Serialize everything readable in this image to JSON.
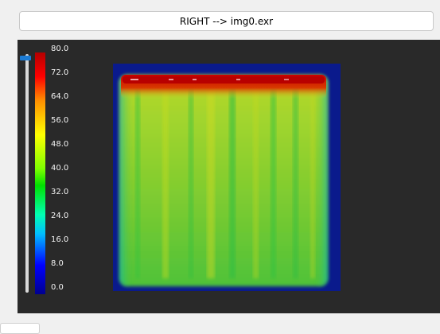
{
  "header": {
    "view_button_label": "RIGHT --> img0.exr"
  },
  "colorbar": {
    "ticks": [
      "80.0",
      "72.0",
      "64.0",
      "56.0",
      "48.0",
      "40.0",
      "32.0",
      "24.0",
      "16.0",
      "8.0",
      "0.0"
    ],
    "range": [
      0,
      80
    ],
    "colors": [
      "#00008f",
      "#0000ff",
      "#00bfff",
      "#00ffb0",
      "#00e000",
      "#7fff00",
      "#ffff00",
      "#ff9000",
      "#ff0000",
      "#b40000"
    ]
  },
  "slider": {
    "value_fraction": 0.98
  },
  "colors": {
    "panel_bg": "#292929",
    "accent": "#1c7bd4"
  }
}
